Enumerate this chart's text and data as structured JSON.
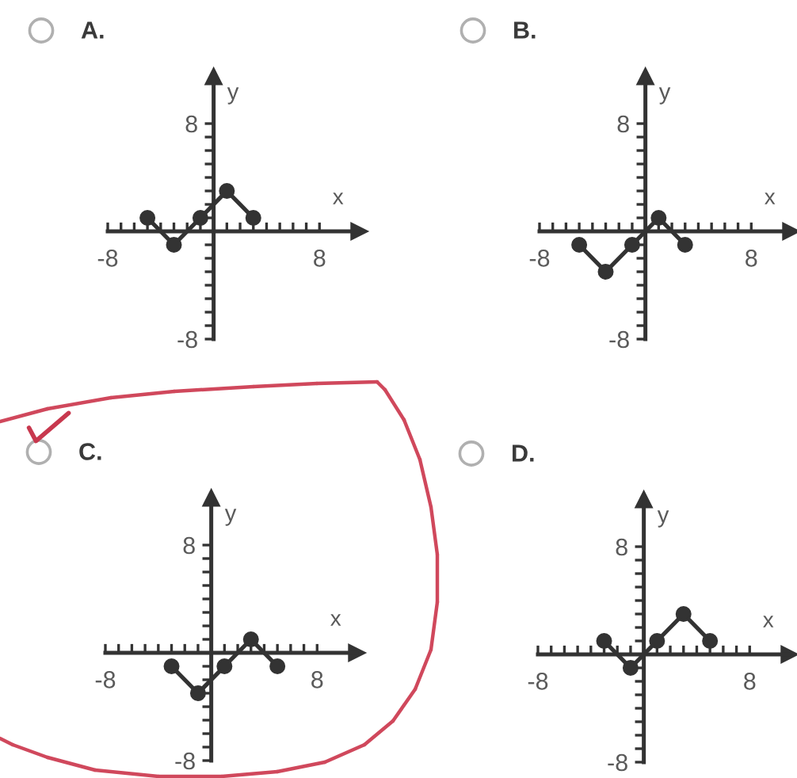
{
  "chart_data": [
    {
      "type": "line",
      "title": "A.",
      "xlabel": "x",
      "ylabel": "y",
      "x": [
        -5,
        -3,
        -1,
        1,
        3
      ],
      "series": [
        {
          "color": "#333333",
          "values": [
            1,
            -1,
            1,
            3,
            1
          ]
        }
      ],
      "marker": "circle",
      "xlim": [
        -8,
        11
      ],
      "ylim": [
        -8,
        11.5
      ],
      "xticks": [
        -8,
        {
          "value": -7,
          "label": null
        },
        {
          "value": -6,
          "label": null
        },
        {
          "value": -5,
          "label": null
        },
        {
          "value": -4,
          "label": null
        },
        {
          "value": -3,
          "label": null
        },
        {
          "value": -2,
          "label": null
        },
        {
          "value": -1,
          "label": null
        },
        {
          "value": 1,
          "label": null
        },
        {
          "value": 2,
          "label": null
        },
        {
          "value": 3,
          "label": null
        },
        {
          "value": 4,
          "label": null
        },
        {
          "value": 5,
          "label": null
        },
        {
          "value": 6,
          "label": null
        },
        {
          "value": 7,
          "label": null
        },
        8
      ],
      "yticks": [
        -8,
        {
          "value": -7,
          "label": null
        },
        {
          "value": -6,
          "label": null
        },
        {
          "value": -5,
          "label": null
        },
        {
          "value": -4,
          "label": null
        },
        {
          "value": -3,
          "label": null
        },
        {
          "value": -2,
          "label": null
        },
        {
          "value": -1,
          "label": null
        },
        {
          "value": 1,
          "label": null
        },
        {
          "value": 2,
          "label": null
        },
        {
          "value": 3,
          "label": null
        },
        {
          "value": 4,
          "label": null
        },
        {
          "value": 5,
          "label": null
        },
        {
          "value": 6,
          "label": null
        },
        {
          "value": 7,
          "label": null
        },
        8
      ]
    },
    {
      "type": "line",
      "title": "B.",
      "xlabel": "x",
      "ylabel": "y",
      "x": [
        -5,
        -3,
        -1,
        1,
        3
      ],
      "series": [
        {
          "color": "#333333",
          "values": [
            -1,
            -3,
            -1,
            1,
            -1
          ]
        }
      ],
      "marker": "circle",
      "xlim": [
        -8,
        11
      ],
      "ylim": [
        -8,
        11.5
      ],
      "xticks": [
        -8,
        {
          "value": -7,
          "label": null
        },
        {
          "value": -6,
          "label": null
        },
        {
          "value": -5,
          "label": null
        },
        {
          "value": -4,
          "label": null
        },
        {
          "value": -3,
          "label": null
        },
        {
          "value": -2,
          "label": null
        },
        {
          "value": -1,
          "label": null
        },
        {
          "value": 1,
          "label": null
        },
        {
          "value": 2,
          "label": null
        },
        {
          "value": 3,
          "label": null
        },
        {
          "value": 4,
          "label": null
        },
        {
          "value": 5,
          "label": null
        },
        {
          "value": 6,
          "label": null
        },
        {
          "value": 7,
          "label": null
        },
        8
      ],
      "yticks": [
        -8,
        {
          "value": -7,
          "label": null
        },
        {
          "value": -6,
          "label": null
        },
        {
          "value": -5,
          "label": null
        },
        {
          "value": -4,
          "label": null
        },
        {
          "value": -3,
          "label": null
        },
        {
          "value": -2,
          "label": null
        },
        {
          "value": -1,
          "label": null
        },
        {
          "value": 1,
          "label": null
        },
        {
          "value": 2,
          "label": null
        },
        {
          "value": 3,
          "label": null
        },
        {
          "value": 4,
          "label": null
        },
        {
          "value": 5,
          "label": null
        },
        {
          "value": 6,
          "label": null
        },
        {
          "value": 7,
          "label": null
        },
        8
      ]
    },
    {
      "type": "line",
      "title": "C.",
      "xlabel": "x",
      "ylabel": "y",
      "x": [
        -3,
        -1,
        1,
        3,
        5
      ],
      "series": [
        {
          "color": "#333333",
          "values": [
            -1,
            -3,
            -1,
            1,
            -1
          ]
        }
      ],
      "marker": "circle",
      "xlim": [
        -8,
        11
      ],
      "ylim": [
        -8,
        11.5
      ],
      "xticks": [
        -8,
        {
          "value": -7,
          "label": null
        },
        {
          "value": -6,
          "label": null
        },
        {
          "value": -5,
          "label": null
        },
        {
          "value": -4,
          "label": null
        },
        {
          "value": -3,
          "label": null
        },
        {
          "value": -2,
          "label": null
        },
        {
          "value": -1,
          "label": null
        },
        {
          "value": 1,
          "label": null
        },
        {
          "value": 2,
          "label": null
        },
        {
          "value": 3,
          "label": null
        },
        {
          "value": 4,
          "label": null
        },
        {
          "value": 5,
          "label": null
        },
        {
          "value": 6,
          "label": null
        },
        {
          "value": 7,
          "label": null
        },
        8
      ],
      "yticks": [
        -8,
        {
          "value": -7,
          "label": null
        },
        {
          "value": -6,
          "label": null
        },
        {
          "value": -5,
          "label": null
        },
        {
          "value": -4,
          "label": null
        },
        {
          "value": -3,
          "label": null
        },
        {
          "value": -2,
          "label": null
        },
        {
          "value": -1,
          "label": null
        },
        {
          "value": 1,
          "label": null
        },
        {
          "value": 2,
          "label": null
        },
        {
          "value": 3,
          "label": null
        },
        {
          "value": 4,
          "label": null
        },
        {
          "value": 5,
          "label": null
        },
        {
          "value": 6,
          "label": null
        },
        {
          "value": 7,
          "label": null
        },
        8
      ]
    },
    {
      "type": "line",
      "title": "D.",
      "xlabel": "x",
      "ylabel": "y",
      "x": [
        -3,
        -1,
        1,
        3,
        5
      ],
      "series": [
        {
          "color": "#333333",
          "values": [
            1,
            -1,
            1,
            3,
            1
          ]
        }
      ],
      "marker": "circle",
      "xlim": [
        -8,
        11
      ],
      "ylim": [
        -8,
        11.5
      ],
      "xticks": [
        -8,
        {
          "value": -7,
          "label": null
        },
        {
          "value": -6,
          "label": null
        },
        {
          "value": -5,
          "label": null
        },
        {
          "value": -4,
          "label": null
        },
        {
          "value": -3,
          "label": null
        },
        {
          "value": -2,
          "label": null
        },
        {
          "value": -1,
          "label": null
        },
        {
          "value": 1,
          "label": null
        },
        {
          "value": 2,
          "label": null
        },
        {
          "value": 3,
          "label": null
        },
        {
          "value": 4,
          "label": null
        },
        {
          "value": 5,
          "label": null
        },
        {
          "value": 6,
          "label": null
        },
        {
          "value": 7,
          "label": null
        },
        8
      ],
      "yticks": [
        -8,
        {
          "value": -7,
          "label": null
        },
        {
          "value": -6,
          "label": null
        },
        {
          "value": -5,
          "label": null
        },
        {
          "value": -4,
          "label": null
        },
        {
          "value": -3,
          "label": null
        },
        {
          "value": -2,
          "label": null
        },
        {
          "value": -1,
          "label": null
        },
        {
          "value": 1,
          "label": null
        },
        {
          "value": 2,
          "label": null
        },
        {
          "value": 3,
          "label": null
        },
        {
          "value": 4,
          "label": null
        },
        {
          "value": 5,
          "label": null
        },
        {
          "value": 6,
          "label": null
        },
        {
          "value": 7,
          "label": null
        },
        8
      ]
    }
  ]
}
